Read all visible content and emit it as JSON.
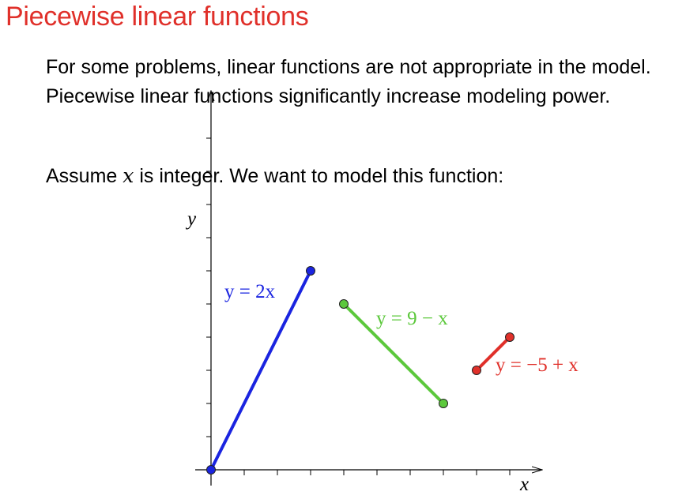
{
  "slide": {
    "title": "Piecewise linear functions",
    "paragraph": "For some problems, linear functions are not appropriate in the model. Piecewise linear functions significantly increase modeling power.",
    "assume_before": "Assume ",
    "assume_var": "x",
    "assume_after": " is integer. We want to model this function:"
  },
  "chart_data": {
    "type": "line",
    "xlabel": "x",
    "ylabel": "y",
    "xlim": [
      0,
      9.5
    ],
    "ylim": [
      0,
      11
    ],
    "x_ticks": [
      1,
      2,
      3,
      4,
      5,
      6,
      7,
      8,
      9
    ],
    "y_ticks": [
      1,
      2,
      3,
      4,
      5,
      6,
      7,
      8,
      9,
      10
    ],
    "grid": false,
    "series": [
      {
        "name": "y = 2x",
        "color": "#1a24e0",
        "points": [
          [
            0,
            0
          ],
          [
            3,
            6
          ]
        ]
      },
      {
        "name": "y = 9 − x",
        "color": "#5cc83c",
        "points": [
          [
            4,
            5
          ],
          [
            7,
            2
          ]
        ]
      },
      {
        "name": "y = −5 + x",
        "color": "#e0302a",
        "points": [
          [
            8,
            3
          ],
          [
            9,
            4
          ]
        ]
      }
    ]
  }
}
